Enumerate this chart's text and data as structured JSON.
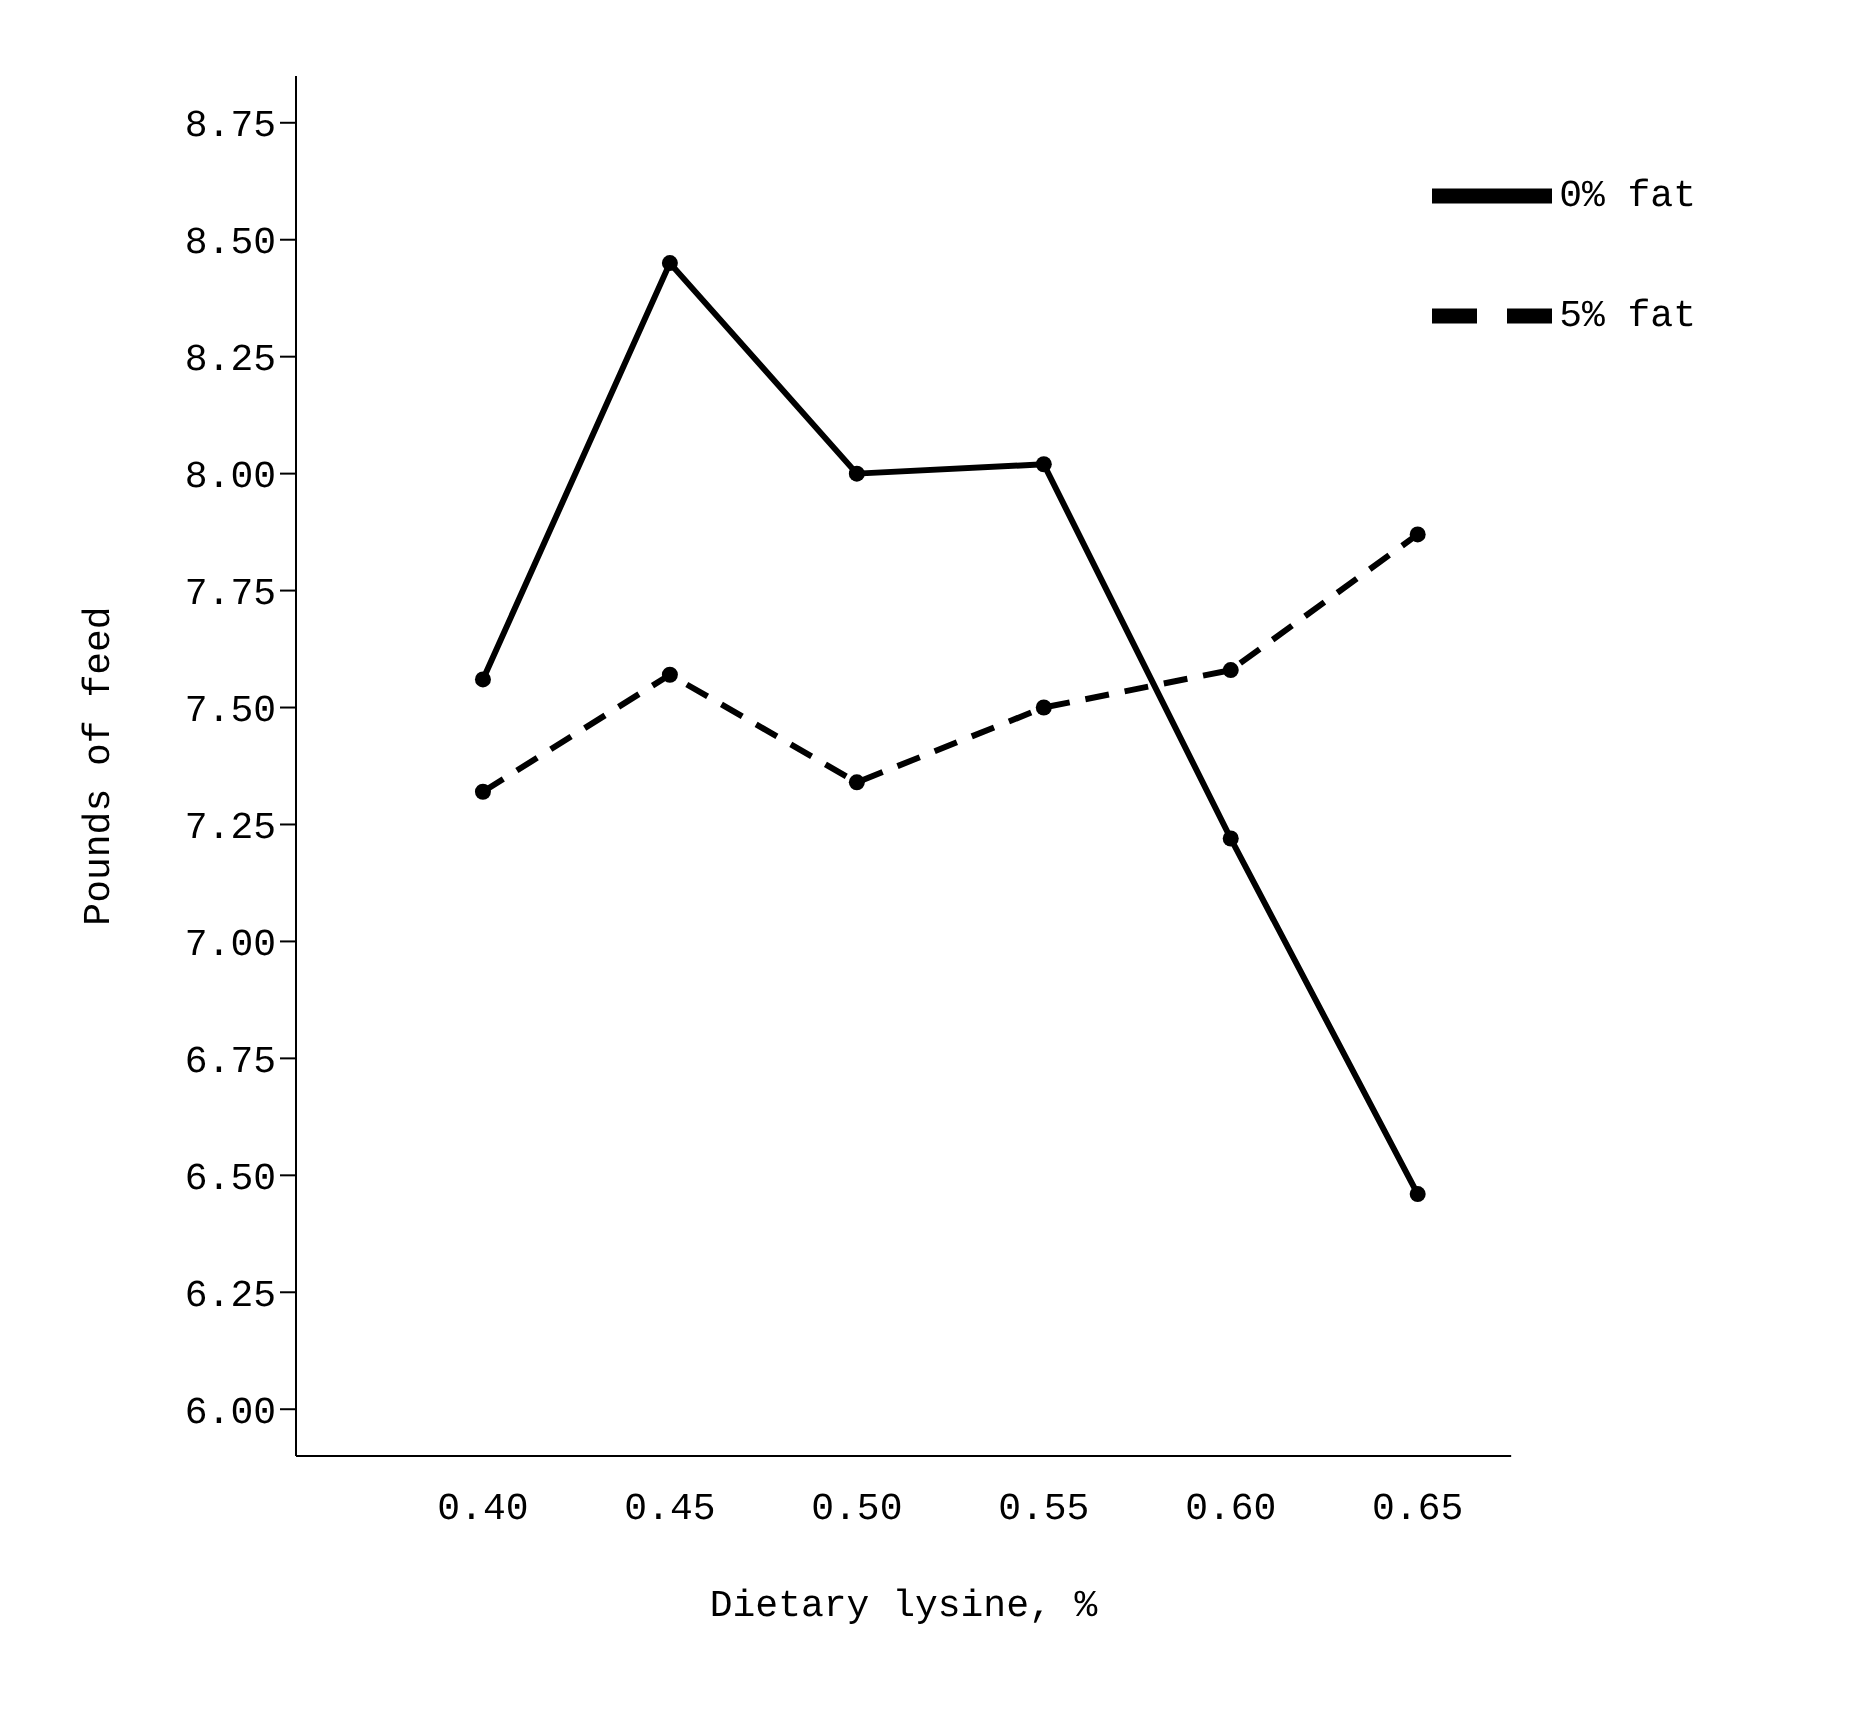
{
  "chart_data": {
    "type": "line",
    "xlabel": "Dietary lysine, %",
    "ylabel": "Pounds of feed",
    "x": [
      0.4,
      0.45,
      0.5,
      0.55,
      0.6,
      0.65
    ],
    "series": [
      {
        "name": "0% fat",
        "color": "#000000",
        "line_style": "solid",
        "values": [
          7.56,
          8.45,
          8.0,
          8.02,
          7.22,
          6.46
        ]
      },
      {
        "name": "5% fat",
        "color": "#000000",
        "line_style": "dashed",
        "values": [
          7.32,
          7.57,
          7.34,
          7.5,
          7.58,
          7.87
        ]
      }
    ],
    "xlim": [
      0.35,
      0.675
    ],
    "xticks": [
      {
        "value": 0.4,
        "label": "0.40"
      },
      {
        "value": 0.45,
        "label": "0.45"
      },
      {
        "value": 0.5,
        "label": "0.50"
      },
      {
        "value": 0.55,
        "label": "0.55"
      },
      {
        "value": 0.6,
        "label": "0.60"
      },
      {
        "value": 0.65,
        "label": "0.65"
      }
    ],
    "ylim": [
      5.9,
      8.85
    ],
    "yticks": [
      {
        "value": 6,
        "label": "6.00"
      },
      {
        "value": 6.25,
        "label": "6.25"
      },
      {
        "value": 6.5,
        "label": "6.50"
      },
      {
        "value": 6.75,
        "label": "6.75"
      },
      {
        "value": 7,
        "label": "7.00"
      },
      {
        "value": 7.25,
        "label": "7.25"
      },
      {
        "value": 7.5,
        "label": "7.50"
      },
      {
        "value": 7.75,
        "label": "7.75"
      },
      {
        "value": 8,
        "label": "8.00"
      },
      {
        "value": 8.25,
        "label": "8.25"
      },
      {
        "value": 8.5,
        "label": "8.50"
      },
      {
        "value": 8.75,
        "label": "8.75"
      }
    ],
    "grid": false,
    "legend": "top right",
    "marker": "circle"
  }
}
